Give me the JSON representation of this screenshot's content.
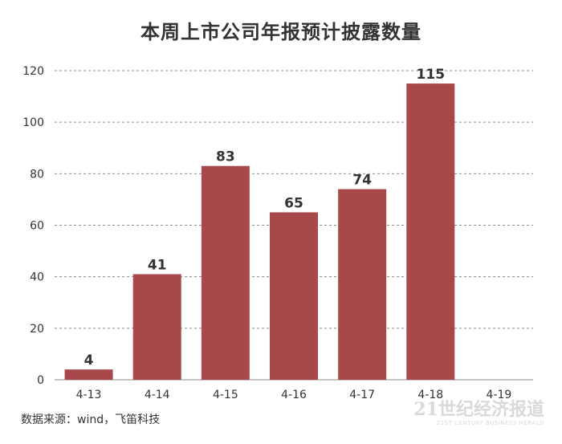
{
  "chart_data": {
    "type": "bar",
    "title": "本周上市公司年报预计披露数量",
    "categories": [
      "4-13",
      "4-14",
      "4-15",
      "4-16",
      "4-17",
      "4-18",
      "4-19"
    ],
    "values": [
      4,
      41,
      83,
      65,
      74,
      115,
      null
    ],
    "data_labels": [
      "4",
      "41",
      "83",
      "65",
      "74",
      "115",
      ""
    ],
    "ylim": [
      0,
      120
    ],
    "yticks": [
      0,
      20,
      40,
      60,
      80,
      100,
      120
    ],
    "grid": "horizontal-dashed",
    "bar_color": "#a9484a"
  },
  "source": "数据来源：wind，飞笛科技",
  "watermark": {
    "main": "21世纪经济报道",
    "sub": "21ST CENTURY BUSINESS HERALD"
  }
}
